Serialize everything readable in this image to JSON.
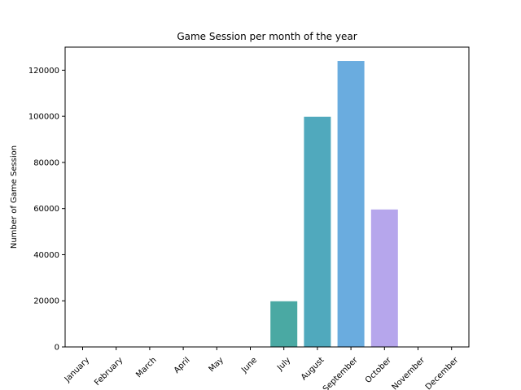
{
  "chart_data": {
    "type": "bar",
    "title": "Game Session per month of the year",
    "xlabel": "",
    "ylabel": "Number of Game Session",
    "categories": [
      "January",
      "February",
      "March",
      "April",
      "May",
      "June",
      "July",
      "August",
      "September",
      "October",
      "November",
      "December"
    ],
    "values": [
      0,
      0,
      0,
      0,
      0,
      0,
      19800,
      99800,
      124000,
      59600,
      0,
      0
    ],
    "colors": [
      "#4ba89e",
      "#4ba89e",
      "#4ba89e",
      "#4ba89e",
      "#4ba89e",
      "#4ba89e",
      "#4aa9a3",
      "#50a9bd",
      "#6aacdf",
      "#b6a6ec",
      "#4ba89e",
      "#4ba89e"
    ],
    "ylim": [
      0,
      130000
    ],
    "yticks": [
      0,
      20000,
      40000,
      60000,
      80000,
      100000,
      120000
    ],
    "ytick_labels": [
      "0",
      "20000",
      "40000",
      "60000",
      "80000",
      "100000",
      "120000"
    ],
    "xtick_rotation": 45,
    "grid": false,
    "legend": "none"
  }
}
